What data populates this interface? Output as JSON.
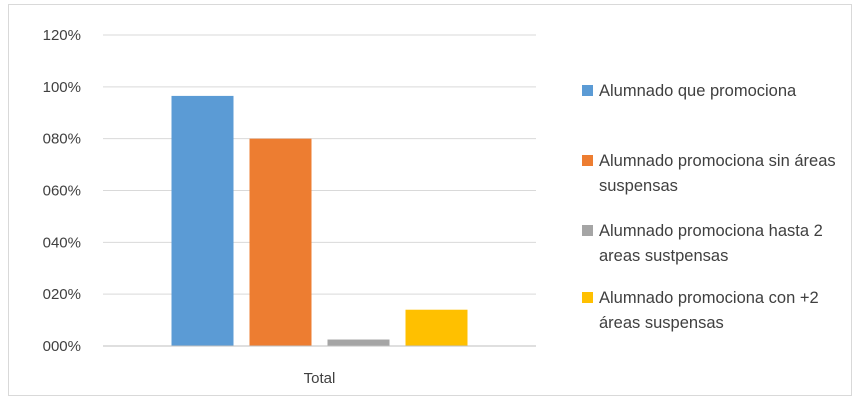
{
  "chart_data": {
    "type": "bar",
    "categories": [
      "Total"
    ],
    "series": [
      {
        "name": "Alumnado que promociona",
        "values": [
          96.5
        ],
        "color": "#5B9BD5"
      },
      {
        "name": "Alumnado promociona sin áreas suspensas",
        "values": [
          80
        ],
        "color": "#ED7D31"
      },
      {
        "name": "Alumnado promociona hasta 2 areas sustpensas",
        "values": [
          2.5
        ],
        "color": "#A5A5A5"
      },
      {
        "name": "Alumnado promociona con +2 áreas suspensas",
        "values": [
          14
        ],
        "color": "#FFC000"
      }
    ],
    "y_ticks": [
      "000%",
      "020%",
      "040%",
      "060%",
      "080%",
      "100%",
      "120%"
    ],
    "y_tick_values": [
      0,
      20,
      40,
      60,
      80,
      100,
      120
    ],
    "ylim": [
      0,
      120
    ],
    "grid": true,
    "legend_position": "right",
    "title": "",
    "xlabel": "",
    "ylabel": ""
  }
}
